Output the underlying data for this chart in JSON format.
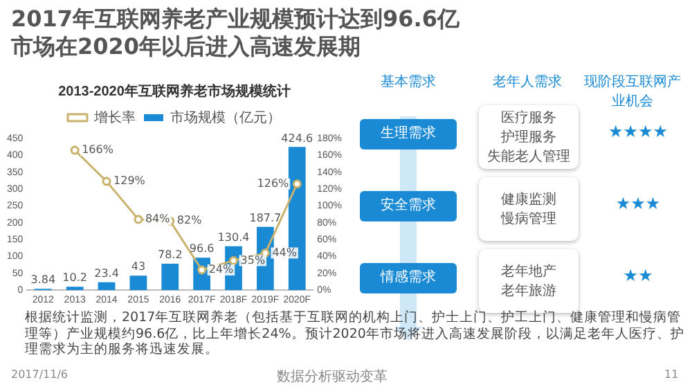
{
  "chart_data": [
    {
      "type": "bar",
      "title": "2013-2020年互联网养老市场规模统计",
      "categories": [
        "2012",
        "2013",
        "2014",
        "2015",
        "2016",
        "2017F",
        "2018F",
        "2019F",
        "2020F"
      ],
      "series": [
        {
          "name": "市场规模（亿元）",
          "type": "bar",
          "color": "#1a8ad4",
          "values": [
            3.84,
            10.2,
            23.4,
            43,
            78.2,
            96.6,
            130.4,
            187.7,
            424.6
          ],
          "value_labels": [
            "3.84",
            "10.2",
            "23.4",
            "43",
            "78.2",
            "96.6",
            "130.4",
            "187.7",
            "424.6"
          ]
        },
        {
          "name": "增长率",
          "type": "line",
          "axis": "y2",
          "color": "#c9b26b",
          "values": [
            null,
            166,
            129,
            84,
            82,
            24,
            35,
            44,
            126
          ],
          "value_labels": [
            null,
            "166%",
            "129%",
            "84%",
            "82%",
            "24%",
            "35%",
            "44%",
            "126%"
          ]
        }
      ],
      "ylim": [
        0,
        450
      ],
      "yticks": [
        0,
        50,
        100,
        150,
        200,
        250,
        300,
        350,
        400,
        450
      ],
      "y2lim": [
        0,
        180
      ],
      "y2ticks": [
        {
          "value": 0,
          "label": "0%"
        },
        {
          "value": 20,
          "label": "20%"
        },
        {
          "value": 40,
          "label": "40%"
        },
        {
          "value": 60,
          "label": "60%"
        },
        {
          "value": 80,
          "label": "80%"
        },
        {
          "value": 100,
          "label": "100%"
        },
        {
          "value": 120,
          "label": "120%"
        },
        {
          "value": 140,
          "label": "140%"
        },
        {
          "value": 160,
          "label": "160%"
        },
        {
          "value": 180,
          "label": "180%"
        }
      ],
      "legend": "top",
      "marker": "circle",
      "line_style": "solid",
      "annotations": [
        "2017年互联网养老产业规模预计达到96.6亿",
        "市场在2020年以后进入高速发展期",
        "根据统计监测，2017年互联网养老（包括基于互联网的机构上门、护士上门、护工上门、健康管理和慢病管理等）产业规模约96.6亿，比上年增长24%。预计2020年市场将进入高速发展阶段，以满足老年人医疗、护理需求为主的服务将迅速发展。",
        "2017/11/6",
        "数据分析驱动变革",
        "11"
      ]
    },
    {
      "type": "other",
      "categories": [
        "基本需求",
        "老年人需求",
        "现阶段互联网产业机会"
      ],
      "y_categories": [
        "生理需求",
        "安全需求",
        "情感需求"
      ],
      "cell_labels": [
        [
          [
            "医疗服务",
            "护理服务",
            "失能老人管理"
          ],
          "★★★★"
        ],
        [
          [
            "健康监测",
            "慢病管理"
          ],
          "★★★"
        ],
        [
          [
            "老年地产",
            "老年旅游"
          ],
          "★★"
        ]
      ]
    }
  ]
}
